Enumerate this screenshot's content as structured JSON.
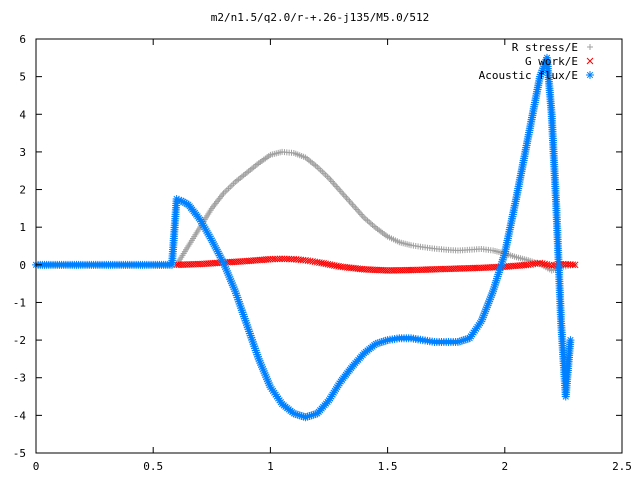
{
  "chart_data": {
    "type": "scatter",
    "title": "m2/n1.5/q2.0/r-+.26-j135/M5.0/512",
    "xlabel": "",
    "ylabel": "",
    "xlim": [
      0,
      2.5
    ],
    "ylim": [
      -5,
      6
    ],
    "x_ticks": [
      "0",
      "0.5",
      "1",
      "1.5",
      "2",
      "2.5"
    ],
    "y_ticks": [
      "-5",
      "-4",
      "-3",
      "-2",
      "-1",
      "0",
      "1",
      "2",
      "3",
      "4",
      "5",
      "6"
    ],
    "grid": false,
    "legend_position": "top-right",
    "series": [
      {
        "name": "R stress/E",
        "marker": "+",
        "color": "#a0a0a0",
        "x": [
          0.6,
          0.62,
          0.65,
          0.7,
          0.75,
          0.8,
          0.85,
          0.9,
          0.95,
          1.0,
          1.05,
          1.1,
          1.15,
          1.2,
          1.25,
          1.3,
          1.35,
          1.4,
          1.45,
          1.5,
          1.55,
          1.6,
          1.65,
          1.7,
          1.75,
          1.8,
          1.85,
          1.9,
          1.95,
          2.0,
          2.05,
          2.1,
          2.15,
          2.2,
          2.25,
          2.3
        ],
        "y": [
          0.0,
          0.2,
          0.5,
          1.0,
          1.5,
          1.9,
          2.2,
          2.45,
          2.7,
          2.92,
          3.0,
          2.97,
          2.85,
          2.6,
          2.3,
          1.95,
          1.6,
          1.25,
          0.98,
          0.75,
          0.6,
          0.52,
          0.47,
          0.43,
          0.4,
          0.38,
          0.4,
          0.42,
          0.38,
          0.3,
          0.2,
          0.12,
          0.02,
          -0.15,
          -0.05,
          0.0
        ]
      },
      {
        "name": "G work/E",
        "marker": "x",
        "color": "#ff0000",
        "x": [
          0.6,
          0.7,
          0.8,
          0.9,
          1.0,
          1.05,
          1.1,
          1.15,
          1.2,
          1.3,
          1.4,
          1.5,
          1.6,
          1.7,
          1.8,
          1.9,
          2.0,
          2.1,
          2.15,
          2.2,
          2.25,
          2.3
        ],
        "y": [
          0.0,
          0.02,
          0.06,
          0.1,
          0.15,
          0.16,
          0.15,
          0.12,
          0.07,
          -0.05,
          -0.12,
          -0.15,
          -0.14,
          -0.12,
          -0.1,
          -0.08,
          -0.05,
          0.0,
          0.05,
          -0.02,
          0.02,
          0.0
        ]
      },
      {
        "name": "Acoustic flux/E",
        "marker": "*",
        "color": "#0080ff",
        "x": [
          0.0,
          0.1,
          0.2,
          0.3,
          0.4,
          0.5,
          0.58,
          0.6,
          0.62,
          0.65,
          0.7,
          0.75,
          0.8,
          0.85,
          0.9,
          0.95,
          1.0,
          1.05,
          1.1,
          1.15,
          1.2,
          1.25,
          1.3,
          1.35,
          1.4,
          1.45,
          1.5,
          1.55,
          1.6,
          1.65,
          1.7,
          1.75,
          1.8,
          1.85,
          1.9,
          1.95,
          2.0,
          2.05,
          2.1,
          2.15,
          2.18,
          2.2,
          2.22,
          2.24,
          2.26,
          2.28
        ],
        "y": [
          0.0,
          0.0,
          0.0,
          0.0,
          0.0,
          0.0,
          0.0,
          1.75,
          1.7,
          1.6,
          1.2,
          0.65,
          0.05,
          -0.7,
          -1.6,
          -2.5,
          -3.25,
          -3.7,
          -3.95,
          -4.05,
          -3.95,
          -3.6,
          -3.1,
          -2.7,
          -2.35,
          -2.1,
          -2.0,
          -1.95,
          -1.95,
          -2.0,
          -2.05,
          -2.05,
          -2.05,
          -1.95,
          -1.5,
          -0.7,
          0.3,
          1.8,
          3.4,
          5.0,
          5.5,
          4.0,
          1.5,
          -1.5,
          -3.5,
          -2.0
        ]
      }
    ]
  }
}
